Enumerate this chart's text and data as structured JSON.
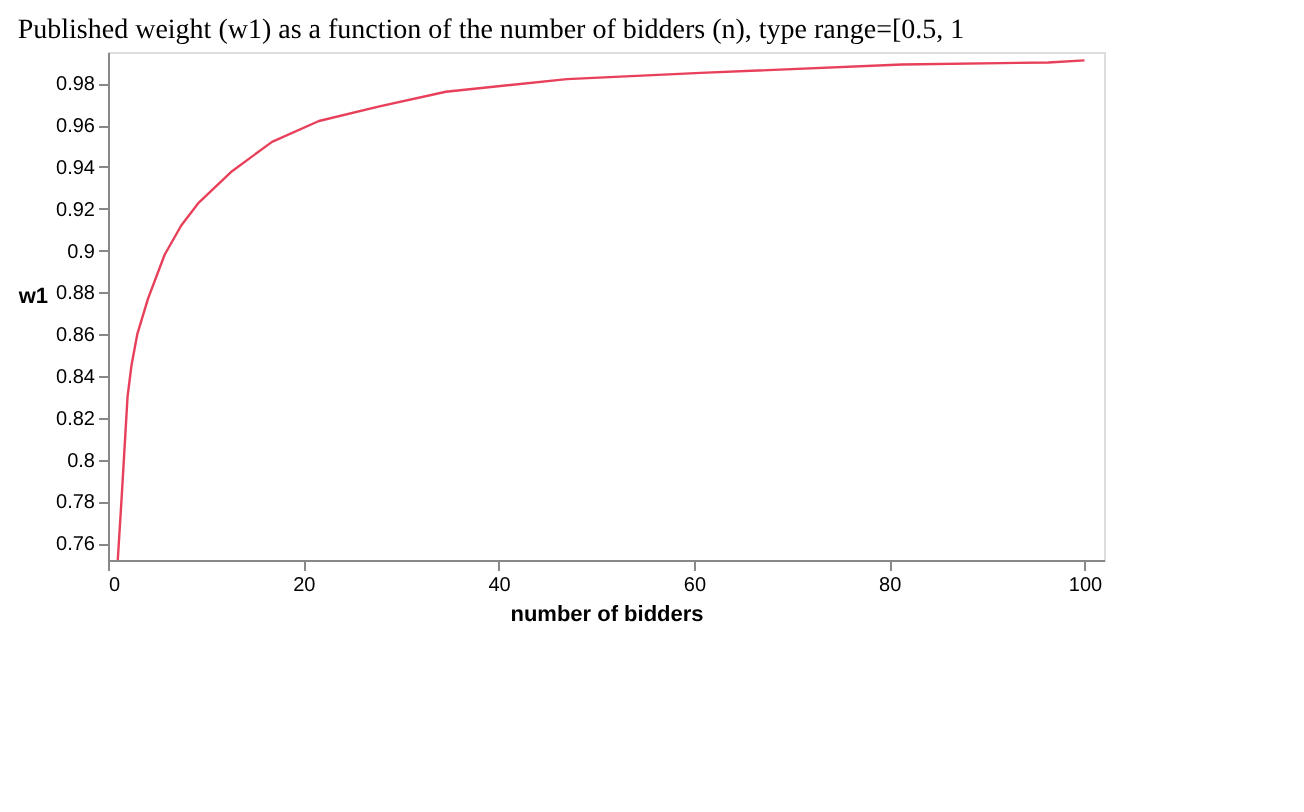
{
  "chart_data": {
    "type": "line",
    "title": "Published weight (w1) as a function of the number of bidders (n), type range=[0.5, 1",
    "xlabel": "number of bidders",
    "ylabel": "w1",
    "x": [
      1,
      1.4,
      2,
      2.4,
      3,
      4.1,
      5.8,
      7.5,
      9.3,
      12.7,
      16.8,
      21.6,
      27.8,
      34.6,
      47,
      60.7,
      81.3,
      96.3,
      100
    ],
    "series": [
      {
        "color": "#e8405a",
        "values": [
          0.752,
          0.782,
          0.83,
          0.845,
          0.86,
          0.877,
          0.898,
          0.912,
          0.923,
          0.938,
          0.952,
          0.962,
          0.969,
          0.976,
          0.982,
          0.985,
          0.989,
          0.99,
          0.991
        ]
      }
    ],
    "xlim": [
      0,
      102
    ],
    "xticks": [
      0,
      20,
      40,
      60,
      80,
      100
    ],
    "ylim": [
      0.752,
      0.995
    ],
    "yticks": [
      0.76,
      0.78,
      0.8,
      0.82,
      0.84,
      0.86,
      0.88,
      0.9,
      0.92,
      0.94,
      0.96,
      0.98
    ],
    "grid": false,
    "marker": "none",
    "line_style": "solid"
  }
}
